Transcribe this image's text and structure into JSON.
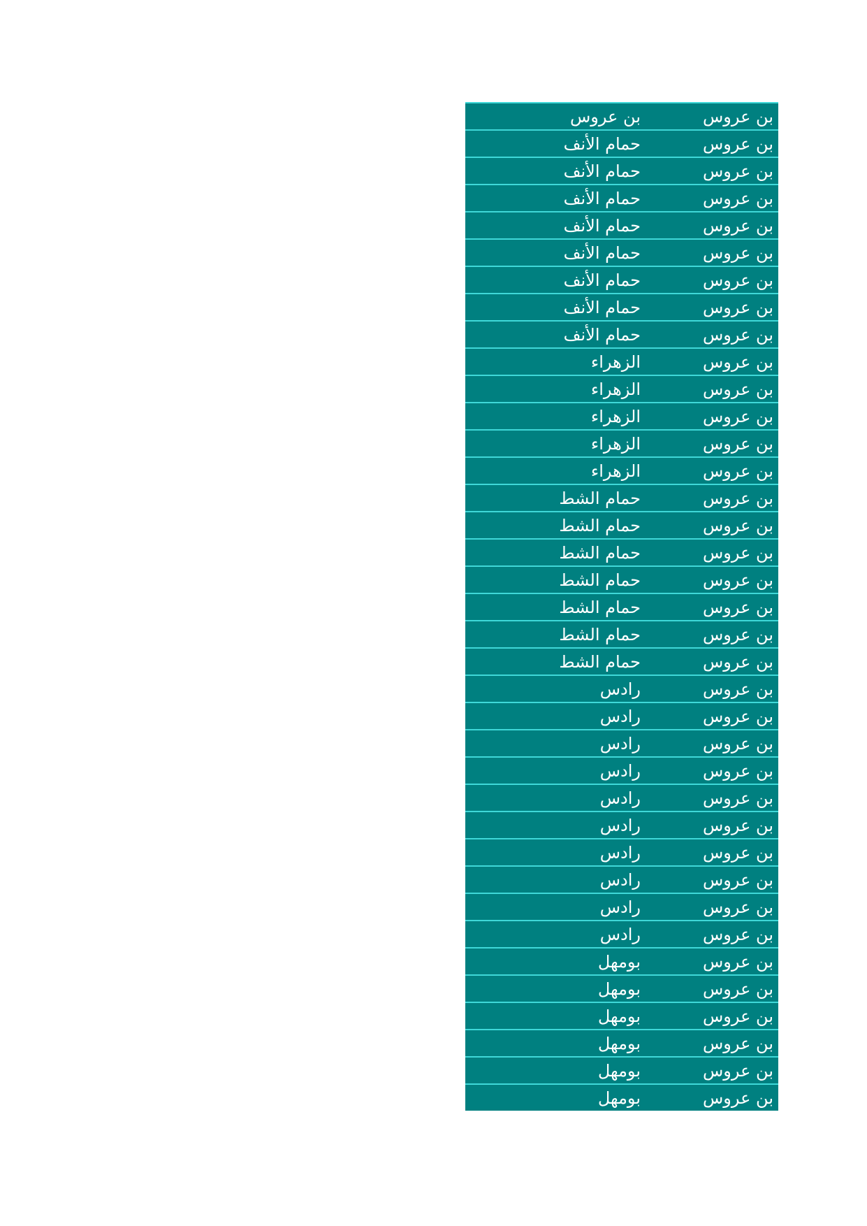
{
  "table": {
    "rows": [
      [
        "بن عروس",
        "بن عروس"
      ],
      [
        "بن عروس",
        "حمام الأنف"
      ],
      [
        "بن عروس",
        "حمام الأنف"
      ],
      [
        "بن عروس",
        "حمام الأنف"
      ],
      [
        "بن عروس",
        "حمام الأنف"
      ],
      [
        "بن عروس",
        "حمام الأنف"
      ],
      [
        "بن عروس",
        "حمام الأنف"
      ],
      [
        "بن عروس",
        "حمام الأنف"
      ],
      [
        "بن عروس",
        "حمام الأنف"
      ],
      [
        "بن عروس",
        "الزهراء"
      ],
      [
        "بن عروس",
        "الزهراء"
      ],
      [
        "بن عروس",
        "الزهراء"
      ],
      [
        "بن عروس",
        "الزهراء"
      ],
      [
        "بن عروس",
        "الزهراء"
      ],
      [
        "بن عروس",
        "حمام الشط"
      ],
      [
        "بن عروس",
        "حمام الشط"
      ],
      [
        "بن عروس",
        "حمام الشط"
      ],
      [
        "بن عروس",
        "حمام الشط"
      ],
      [
        "بن عروس",
        "حمام الشط"
      ],
      [
        "بن عروس",
        "حمام الشط"
      ],
      [
        "بن عروس",
        "حمام الشط"
      ],
      [
        "بن عروس",
        "رادس"
      ],
      [
        "بن عروس",
        "رادس"
      ],
      [
        "بن عروس",
        "رادس"
      ],
      [
        "بن عروس",
        "رادس"
      ],
      [
        "بن عروس",
        "رادس"
      ],
      [
        "بن عروس",
        "رادس"
      ],
      [
        "بن عروس",
        "رادس"
      ],
      [
        "بن عروس",
        "رادس"
      ],
      [
        "بن عروس",
        "رادس"
      ],
      [
        "بن عروس",
        "رادس"
      ],
      [
        "بن عروس",
        "بومهل"
      ],
      [
        "بن عروس",
        "بومهل"
      ],
      [
        "بن عروس",
        "بومهل"
      ],
      [
        "بن عروس",
        "بومهل"
      ],
      [
        "بن عروس",
        "بومهل"
      ],
      [
        "بن عروس",
        "بومهل"
      ]
    ]
  },
  "colors": {
    "fill": "#008080",
    "border": "#3fd8d8",
    "text": "#ffffff"
  }
}
